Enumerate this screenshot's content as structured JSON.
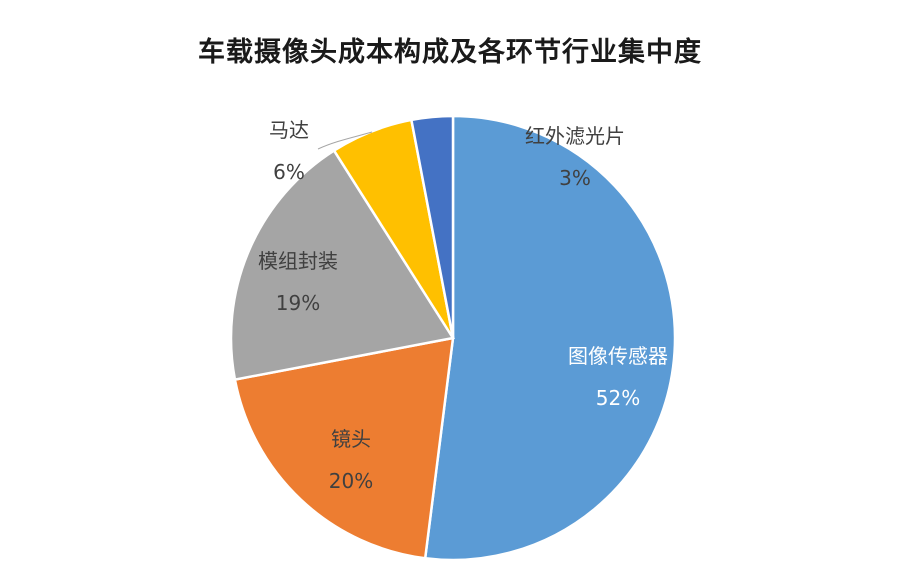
{
  "chart_data": {
    "type": "pie",
    "title": "车载摄像头成本构成及各环节行业集中度",
    "slices": [
      {
        "name": "图像传感器",
        "value": 52,
        "label": "52%",
        "color": "#5b9bd5",
        "text_color": "#ffffff"
      },
      {
        "name": "镜头",
        "value": 20,
        "label": "20%",
        "color": "#ed7d31",
        "text_color": "#404040"
      },
      {
        "name": "模组封装",
        "value": 19,
        "label": "19%",
        "color": "#a5a5a5",
        "text_color": "#404040"
      },
      {
        "name": "马达",
        "value": 6,
        "label": "6%",
        "color": "#ffc000",
        "text_color": "#404040"
      },
      {
        "name": "红外滤光片",
        "value": 3,
        "label": "3%",
        "color": "#4472c4",
        "text_color": "#404040"
      }
    ],
    "start": "top",
    "direction": "clockwise",
    "legend": "none",
    "labels": "category name and percentage"
  }
}
